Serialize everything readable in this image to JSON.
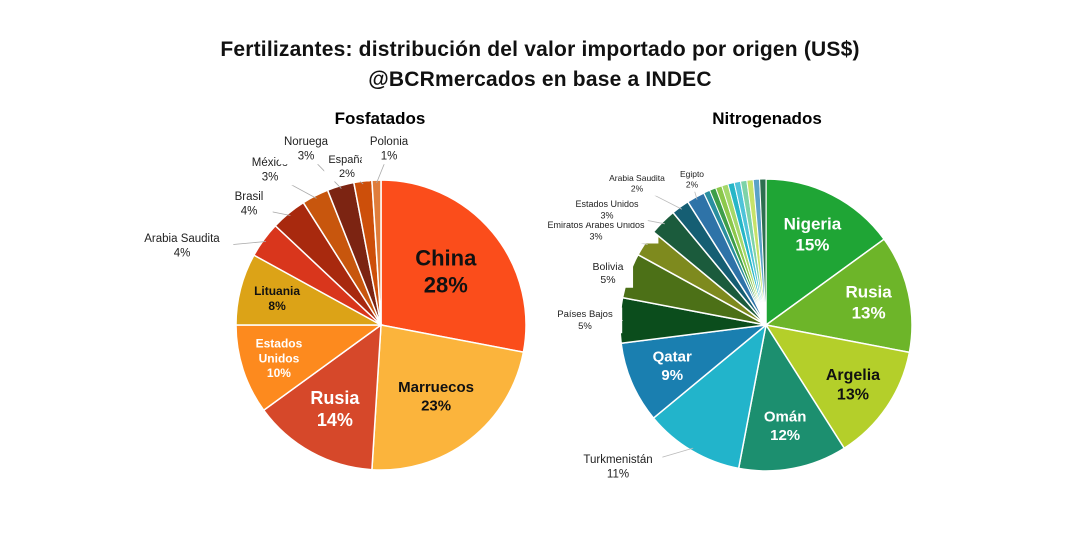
{
  "title": "Fertilizantes: distribución del valor importado por origen (US$)",
  "subtitle": "@BCRmercados en base a INDEC",
  "chart_data": [
    {
      "type": "pie",
      "title": "Fosfatados",
      "slices": [
        {
          "label": "China",
          "pct_label": "28%",
          "value": 28,
          "color": "#fb4d1b"
        },
        {
          "label": "Marruecos",
          "pct_label": "23%",
          "value": 23,
          "color": "#fbb43c"
        },
        {
          "label": "Rusia",
          "pct_label": "14%",
          "value": 14,
          "color": "#d6482a"
        },
        {
          "label": "Estados Unidos",
          "pct_label": "10%",
          "value": 10,
          "color": "#fd8a1e"
        },
        {
          "label": "Lituania",
          "pct_label": "8%",
          "value": 8,
          "color": "#dca317"
        },
        {
          "label": "Arabia Saudita",
          "pct_label": "4%",
          "value": 4,
          "color": "#d9361c"
        },
        {
          "label": "Brasil",
          "pct_label": "4%",
          "value": 4,
          "color": "#a8290e"
        },
        {
          "label": "México",
          "pct_label": "3%",
          "value": 3,
          "color": "#c8560d"
        },
        {
          "label": "Noruega",
          "pct_label": "3%",
          "value": 3,
          "color": "#7c2412"
        },
        {
          "label": "España",
          "pct_label": "2%",
          "value": 2,
          "color": "#cd4f0a"
        },
        {
          "label": "Polonia",
          "pct_label": "1%",
          "value": 1,
          "color": "#e07d3b"
        }
      ]
    },
    {
      "type": "pie",
      "title": "Nitrogenados",
      "slices": [
        {
          "label": "Nigeria",
          "pct_label": "15%",
          "value": 15,
          "color": "#1fa535"
        },
        {
          "label": "Rusia",
          "pct_label": "13%",
          "value": 13,
          "color": "#6db529"
        },
        {
          "label": "Argelia",
          "pct_label": "13%",
          "value": 13,
          "color": "#b4cf2a"
        },
        {
          "label": "Omán",
          "pct_label": "12%",
          "value": 12,
          "color": "#1c8f6f"
        },
        {
          "label": "Turkmenistán",
          "pct_label": "11%",
          "value": 11,
          "color": "#22b4cb"
        },
        {
          "label": "Qatar",
          "pct_label": "9%",
          "value": 9,
          "color": "#1a7fb0"
        },
        {
          "label": "Países Bajos",
          "pct_label": "5%",
          "value": 5,
          "color": "#0b4d1c"
        },
        {
          "label": "Bolivia",
          "pct_label": "5%",
          "value": 5,
          "color": "#4c7017"
        },
        {
          "label": "Emiratos Árabes Unidos",
          "pct_label": "3%",
          "value": 3,
          "color": "#7e8a1e"
        },
        {
          "label": "Estados Unidos",
          "pct_label": "3%",
          "value": 3,
          "color": "#1b5b3c"
        },
        {
          "label": "Arabia Saudita",
          "pct_label": "2%",
          "value": 2,
          "color": "#155e73"
        },
        {
          "label": "Egipto",
          "pct_label": "2%",
          "value": 2,
          "color": "#2e73a8"
        }
      ]
    }
  ]
}
